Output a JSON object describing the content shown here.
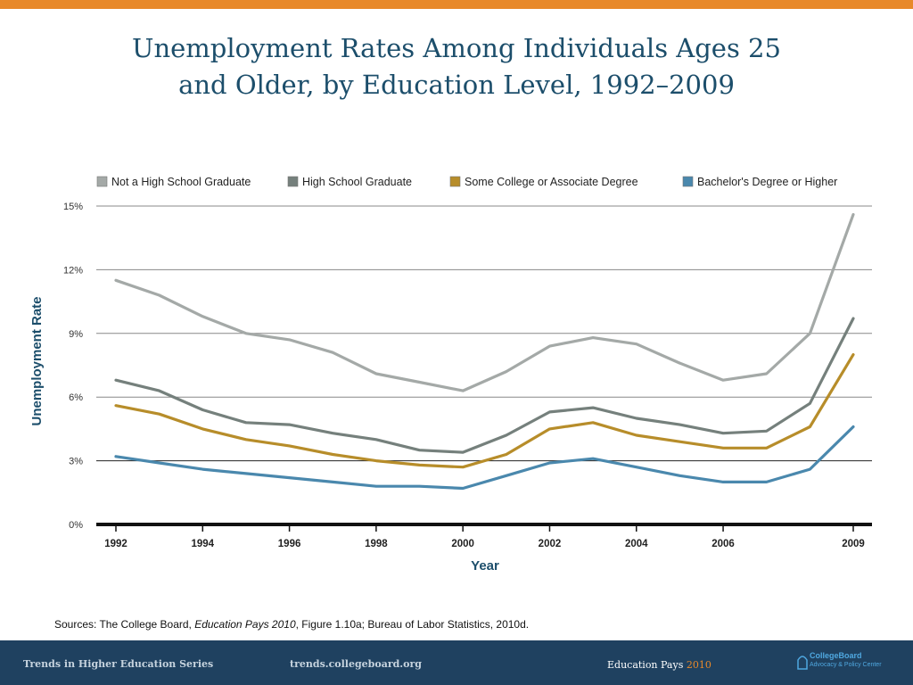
{
  "title": {
    "line1": "Unemployment Rates Among Individuals Ages 25",
    "line2": "and Older, by Education Level, 1992–2009"
  },
  "chart_data": {
    "type": "line",
    "title": "Unemployment Rates Among Individuals Ages 25 and Older, by Education Level, 1992–2009",
    "xlabel": "Year",
    "ylabel": "Unemployment Rate",
    "x": [
      1992,
      1993,
      1994,
      1995,
      1996,
      1997,
      1998,
      1999,
      2000,
      2001,
      2002,
      2003,
      2004,
      2005,
      2006,
      2007,
      2008,
      2009
    ],
    "x_tick_labels": [
      "1992",
      "1994",
      "1996",
      "1998",
      "2000",
      "2002",
      "2004",
      "2006",
      "2009"
    ],
    "x_tick_values": [
      1992,
      1994,
      1996,
      1998,
      2000,
      2002,
      2004,
      2006,
      2009
    ],
    "y_ticks": [
      0,
      3,
      6,
      9,
      12,
      15
    ],
    "y_tick_labels": [
      "0%",
      "3%",
      "6%",
      "9%",
      "12%",
      "15%"
    ],
    "ylim": [
      0,
      15
    ],
    "grid": true,
    "legend_position": "top",
    "series": [
      {
        "name": "Not a High School Graduate",
        "color": "#a4a9a7",
        "values": [
          11.5,
          10.8,
          9.8,
          9.0,
          8.7,
          8.1,
          7.1,
          6.7,
          6.3,
          7.2,
          8.4,
          8.8,
          8.5,
          7.6,
          6.8,
          7.1,
          9.0,
          14.6
        ]
      },
      {
        "name": "High School Graduate",
        "color": "#75807c",
        "values": [
          6.8,
          6.3,
          5.4,
          4.8,
          4.7,
          4.3,
          4.0,
          3.5,
          3.4,
          4.2,
          5.3,
          5.5,
          5.0,
          4.7,
          4.3,
          4.4,
          5.7,
          9.7
        ]
      },
      {
        "name": "Some College or Associate Degree",
        "color": "#b78d2a",
        "values": [
          5.6,
          5.2,
          4.5,
          4.0,
          3.7,
          3.3,
          3.0,
          2.8,
          2.7,
          3.3,
          4.5,
          4.8,
          4.2,
          3.9,
          3.6,
          3.6,
          4.6,
          8.0
        ]
      },
      {
        "name": "Bachelor's Degree or Higher",
        "color": "#4a88ad",
        "values": [
          3.2,
          2.9,
          2.6,
          2.4,
          2.2,
          2.0,
          1.8,
          1.8,
          1.7,
          2.3,
          2.9,
          3.1,
          2.7,
          2.3,
          2.0,
          2.0,
          2.6,
          4.6
        ]
      }
    ]
  },
  "source": {
    "prefix": "Sources: The College Board, ",
    "italic": "Education Pays 2010",
    "suffix": ", Figure 1.10a; Bureau of Labor Statistics, 2010d."
  },
  "footer": {
    "series_name": "Trends in Higher Education Series",
    "site": "trends.collegeboard.org",
    "pub_name": "Education Pays",
    "pub_year": "2010",
    "logo_brand": "CollegeBoard",
    "logo_sub": "Advocacy & Policy Center"
  },
  "colors": {
    "accent_orange": "#e8892a",
    "title_blue": "#1c4e6b",
    "footer_navy": "#1f4160"
  }
}
